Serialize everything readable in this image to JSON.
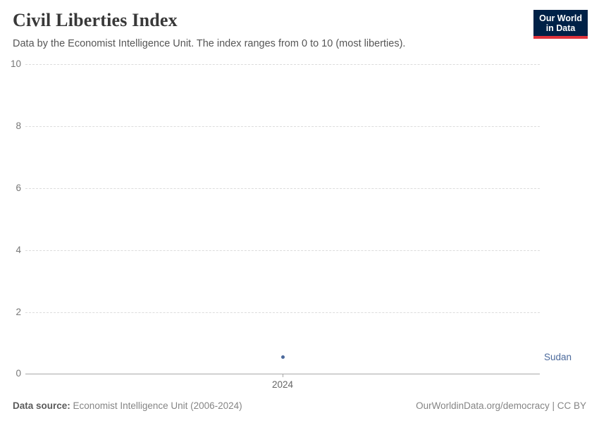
{
  "header": {
    "title": "Civil Liberties Index",
    "subtitle": "Data by the Economist Intelligence Unit. The index ranges from 0 to 10 (most liberties).",
    "logo": {
      "line1": "Our World",
      "line2": "in Data",
      "bg_color": "#002147",
      "bar_color": "#e0333c"
    }
  },
  "chart_data": {
    "type": "scatter",
    "title": "Civil Liberties Index",
    "subtitle": "Data by the Economist Intelligence Unit. The index ranges from 0 to 10 (most liberties).",
    "series": [
      {
        "name": "Sudan",
        "x": [
          2024
        ],
        "values": [
          0.59
        ],
        "color": "#4c6a9c"
      }
    ],
    "xticks": [
      "2024"
    ],
    "yticks": [
      "10",
      "8",
      "6",
      "4",
      "2",
      "0"
    ],
    "ylim": [
      0,
      10
    ],
    "xlabel": "",
    "ylabel": "",
    "grid": "horizontal-dashed",
    "legend_position": "entity-label-right"
  },
  "footer": {
    "source_label": "Data source:",
    "source_value": "Economist Intelligence Unit (2006-2024)",
    "license": "OurWorldinData.org/democracy | CC BY"
  }
}
